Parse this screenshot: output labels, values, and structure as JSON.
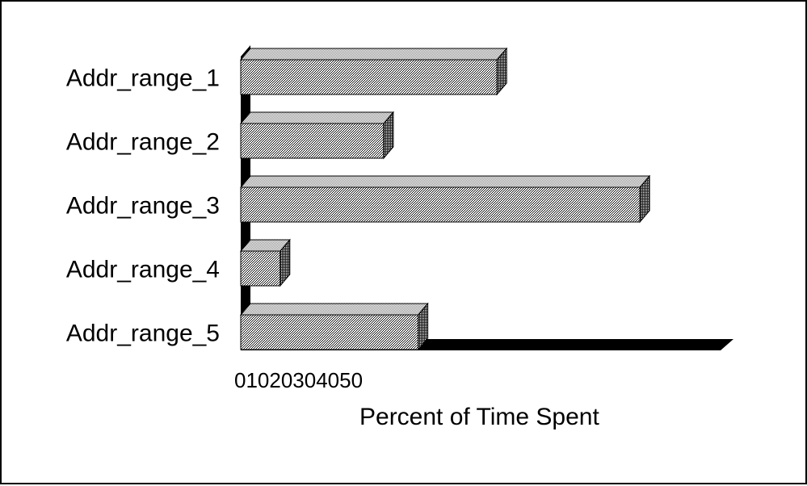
{
  "chart_data": {
    "type": "bar",
    "orientation": "horizontal",
    "style": "3d",
    "categories": [
      "Addr_range_1",
      "Addr_range_2",
      "Addr_range_3",
      "Addr_range_4",
      "Addr_range_5"
    ],
    "values": [
      26,
      14.5,
      40.5,
      4,
      18
    ],
    "xlabel": "Percent of Time Spent",
    "ylabel": "",
    "xticks": [
      "0",
      "10",
      "20",
      "30",
      "40",
      "50"
    ],
    "xlim": [
      0,
      50
    ],
    "grid": false,
    "legend": "none",
    "colors": {
      "bar_pattern": "#b0b0b0",
      "bar_shadow": "#000000",
      "floor": "#000000",
      "background": "#ffffff"
    }
  }
}
